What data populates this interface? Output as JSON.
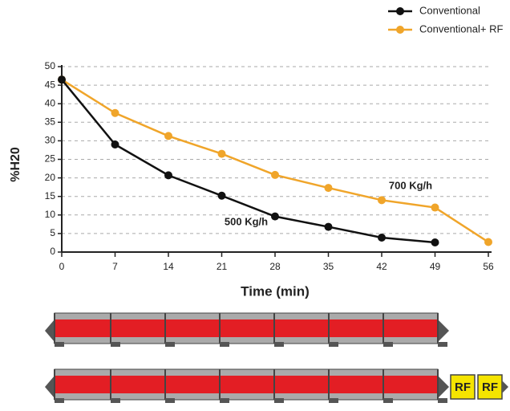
{
  "chart_data": {
    "type": "line",
    "x_label": "Time (min)",
    "y_label": "%H20",
    "x": [
      0,
      7,
      14,
      21,
      28,
      35,
      42,
      49,
      56
    ],
    "series": [
      {
        "name": "Conventional",
        "color": "#111111",
        "values": [
          46.5,
          29,
          20.7,
          15.2,
          9.6,
          6.8,
          3.9,
          2.6,
          null
        ]
      },
      {
        "name": "Conventional+ RF",
        "color": "#f0a52a",
        "values": [
          46.5,
          37.5,
          31.3,
          26.5,
          20.8,
          17.3,
          14,
          12,
          2.7
        ]
      }
    ],
    "annotations": [
      "500 Kg/h",
      "700 Kg/h"
    ],
    "xlim": [
      0,
      56
    ],
    "xticks": [
      0,
      7,
      14,
      21,
      28,
      35,
      42,
      49,
      56
    ],
    "ylim": [
      0,
      50
    ],
    "yticks": [
      0,
      5,
      10,
      15,
      20,
      25,
      30,
      35,
      40,
      45,
      50
    ],
    "grid": true,
    "legend": "top-right"
  },
  "diagram": {
    "labels": [
      "RF",
      "RF"
    ]
  }
}
